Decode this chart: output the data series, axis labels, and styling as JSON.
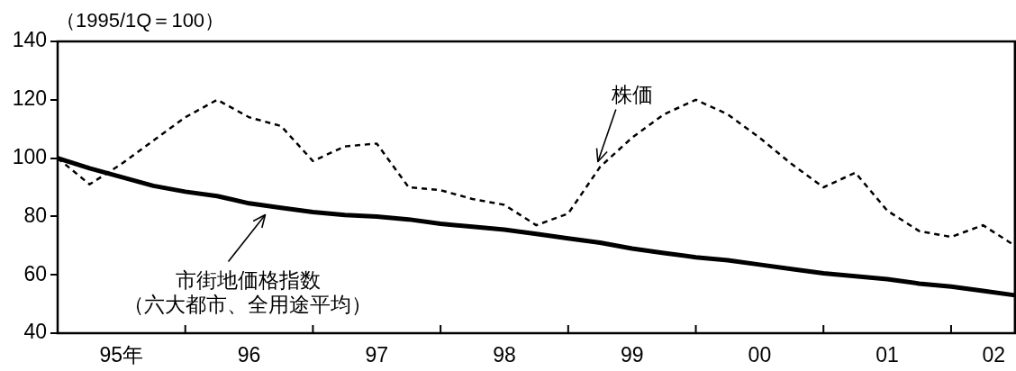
{
  "chart_data": {
    "type": "line",
    "ylabel": "（1995/1Q＝100）",
    "marker": "none",
    "x": [
      "1995-01",
      "1995-04",
      "1995-07",
      "1995-10",
      "1996-01",
      "1996-04",
      "1996-07",
      "1996-10",
      "1997-01",
      "1997-04",
      "1997-07",
      "1997-10",
      "1998-01",
      "1998-04",
      "1998-07",
      "1998-10",
      "1999-01",
      "1999-04",
      "1999-07",
      "1999-10",
      "2000-01",
      "2000-04",
      "2000-07",
      "2000-10",
      "2001-01",
      "2001-04",
      "2001-07",
      "2001-10",
      "2002-01",
      "2002-04",
      "2002-07"
    ],
    "xlim": [
      "1995-01",
      "2002-07"
    ],
    "xticks": [
      {
        "value": "1995-07",
        "label": "95年"
      },
      {
        "value": "1996-01",
        "label": null
      },
      {
        "value": "1996-07",
        "label": "96"
      },
      {
        "value": "1997-01",
        "label": null
      },
      {
        "value": "1997-07",
        "label": "97"
      },
      {
        "value": "1998-01",
        "label": null
      },
      {
        "value": "1998-07",
        "label": "98"
      },
      {
        "value": "1999-01",
        "label": null
      },
      {
        "value": "1999-07",
        "label": "99"
      },
      {
        "value": "2000-01",
        "label": null
      },
      {
        "value": "2000-07",
        "label": "00"
      },
      {
        "value": "2001-01",
        "label": null
      },
      {
        "value": "2001-07",
        "label": "01"
      },
      {
        "value": "2002-01",
        "label": null
      },
      {
        "value": "2002-05",
        "label": "02"
      }
    ],
    "ylim": [
      40,
      140
    ],
    "yticks": [
      40,
      60,
      80,
      100,
      120,
      140
    ],
    "series": [
      {
        "name": "株価",
        "color": "#000000",
        "line_style": "dashed",
        "values": [
          100,
          91,
          98,
          106,
          114,
          120,
          114,
          111,
          99,
          104,
          105,
          90,
          89,
          86,
          84,
          77,
          81,
          97,
          107,
          115,
          120,
          115,
          107,
          98,
          90,
          95,
          82,
          75,
          73,
          77,
          70
        ]
      },
      {
        "name": "市街地価格指数（六大都市、全用途平均）",
        "color": "#000000",
        "line_style": "solid",
        "values": [
          100,
          96.5,
          93.5,
          90.5,
          88.5,
          87,
          84.5,
          83,
          81.5,
          80.5,
          80,
          79,
          77.5,
          76.5,
          75.5,
          74,
          72.5,
          71,
          69,
          67.5,
          66,
          65,
          63.5,
          62,
          60.5,
          59.5,
          58.5,
          57,
          56,
          54.5,
          53
        ]
      }
    ]
  }
}
